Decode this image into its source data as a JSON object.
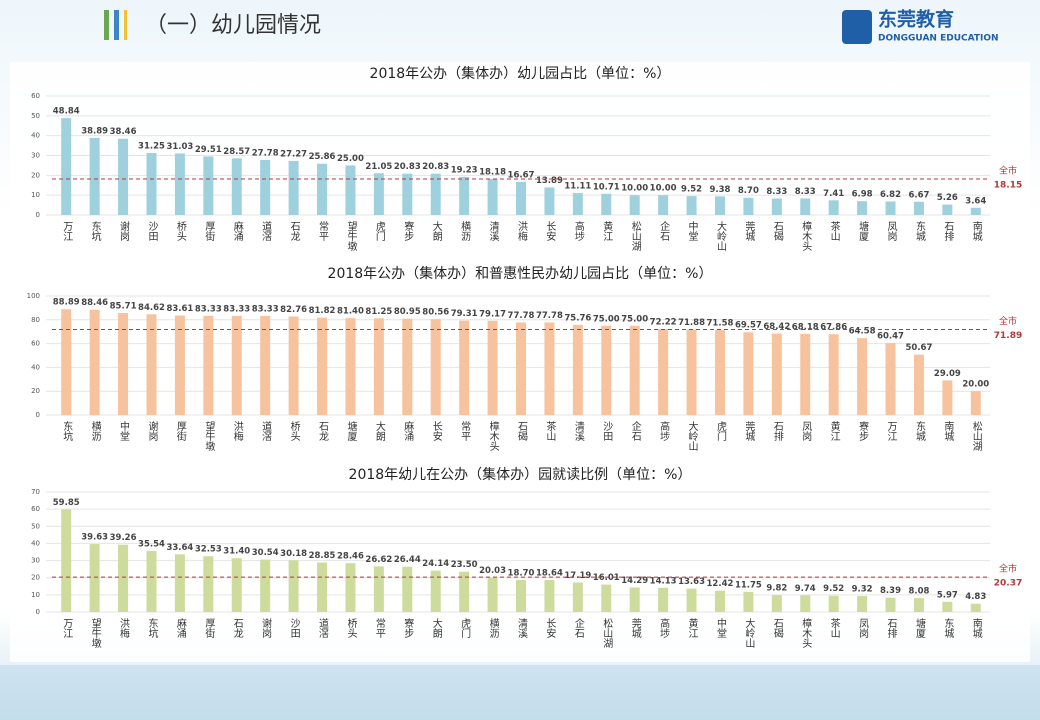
{
  "header": {
    "title": "（一）幼儿园情况",
    "logo": "东莞教育",
    "logo_sub": "DONGGUAN EDUCATION"
  },
  "chart_data": [
    {
      "type": "bar",
      "title": "2018年公办（集体办）幼儿园占比（单位：%）",
      "categories": [
        "万江",
        "东坑",
        "谢岗",
        "沙田",
        "桥头",
        "厚街",
        "麻涌",
        "道滘",
        "石龙",
        "常平",
        "望牛墩",
        "虎门",
        "寮步",
        "大朗",
        "横沥",
        "清溪",
        "洪梅",
        "长安",
        "高埗",
        "黄江",
        "松山湖",
        "企石",
        "中堂",
        "大岭山",
        "莞城",
        "石碣",
        "樟木头",
        "茶山",
        "塘厦",
        "凤岗",
        "东城",
        "石排",
        "南城"
      ],
      "values": [
        48.84,
        38.89,
        38.46,
        31.25,
        31.03,
        29.51,
        28.57,
        27.78,
        27.27,
        25.86,
        25.0,
        21.05,
        20.83,
        20.83,
        19.23,
        18.18,
        16.67,
        13.89,
        11.11,
        10.71,
        10.0,
        10.0,
        9.52,
        9.38,
        8.7,
        8.33,
        8.33,
        7.41,
        6.98,
        6.82,
        6.67,
        5.26,
        3.64
      ],
      "value_labels": [
        "48.84",
        "38.89",
        "38.46",
        "31.25",
        "31.03",
        "29.51",
        "28.57",
        "27.78",
        "27.27",
        "25.86",
        "25.00",
        "21.05",
        "20.83",
        "20.83",
        "19.23",
        "18.18",
        "16.67",
        "13.89",
        "11.11",
        "10.71",
        "10.00",
        "10.00",
        "9.52",
        "9.38",
        "8.70",
        "8.33",
        "8.33",
        "7.41",
        "6.98",
        "6.82",
        "6.67",
        "5.26",
        "3.64"
      ],
      "color": "#9fd0de",
      "ylim": [
        0,
        60
      ],
      "yticks": [
        0,
        10,
        20,
        30,
        40,
        50,
        60
      ],
      "grid": true,
      "reference": {
        "label": "全市",
        "value": 18.15,
        "color": "#b03a3a"
      }
    },
    {
      "type": "bar",
      "title": "2018年公办（集体办）和普惠性民办幼儿园占比（单位：%）",
      "categories": [
        "东坑",
        "横沥",
        "中堂",
        "谢岗",
        "厚街",
        "望牛墩",
        "洪梅",
        "道滘",
        "桥头",
        "石龙",
        "塘厦",
        "大朗",
        "麻涌",
        "长安",
        "常平",
        "樟木头",
        "石碣",
        "茶山",
        "清溪",
        "沙田",
        "企石",
        "高埗",
        "大岭山",
        "虎门",
        "莞城",
        "石排",
        "凤岗",
        "黄江",
        "寮步",
        "万江",
        "东城",
        "南城",
        "松山湖"
      ],
      "values": [
        88.89,
        88.46,
        85.71,
        84.62,
        83.61,
        83.33,
        83.33,
        83.33,
        82.76,
        81.82,
        81.4,
        81.25,
        80.95,
        80.56,
        79.31,
        79.17,
        77.78,
        77.78,
        75.76,
        75.0,
        75.0,
        72.22,
        71.88,
        71.58,
        69.57,
        68.42,
        68.18,
        67.86,
        64.58,
        60.47,
        50.67,
        29.09,
        20.0
      ],
      "value_labels": [
        "88.89",
        "88.46",
        "85.71",
        "84.62",
        "83.61",
        "83.33",
        "83.33",
        "83.33",
        "82.76",
        "81.82",
        "81.40",
        "81.25",
        "80.95",
        "80.56",
        "79.31",
        "79.17",
        "77.78",
        "77.78",
        "75.76",
        "75.00",
        "75.00",
        "72.22",
        "71.88",
        "71.58",
        "69.57",
        "68.42",
        "68.18",
        "67.86",
        "64.58",
        "60.47",
        "50.67",
        "29.09",
        "20.00"
      ],
      "color": "#f7c39e",
      "ylim": [
        0,
        100
      ],
      "yticks": [
        0,
        20,
        40,
        60,
        80,
        100
      ],
      "grid": true,
      "reference": {
        "label": "全市",
        "value": 71.89,
        "color": "#b03a3a"
      }
    },
    {
      "type": "bar",
      "title": "2018年幼儿在公办（集体办）园就读比例（单位：%）",
      "categories": [
        "万江",
        "望牛墩",
        "洪梅",
        "东坑",
        "麻涌",
        "厚街",
        "石龙",
        "谢岗",
        "沙田",
        "道滘",
        "桥头",
        "常平",
        "寮步",
        "大朗",
        "虎门",
        "横沥",
        "清溪",
        "长安",
        "企石",
        "松山湖",
        "莞城",
        "高埗",
        "黄江",
        "中堂",
        "大岭山",
        "石碣",
        "樟木头",
        "茶山",
        "凤岗",
        "石排",
        "塘厦",
        "东城",
        "南城"
      ],
      "values": [
        59.85,
        39.63,
        39.26,
        35.54,
        33.64,
        32.53,
        31.4,
        30.54,
        30.18,
        28.85,
        28.46,
        26.62,
        26.44,
        24.14,
        23.5,
        20.03,
        18.7,
        18.64,
        17.19,
        16.01,
        14.29,
        14.13,
        13.63,
        12.42,
        11.75,
        9.82,
        9.74,
        9.52,
        9.32,
        8.39,
        8.08,
        5.97,
        4.83
      ],
      "value_labels": [
        "59.85",
        "39.63",
        "39.26",
        "35.54",
        "33.64",
        "32.53",
        "31.40",
        "30.54",
        "30.18",
        "28.85",
        "28.46",
        "26.62",
        "26.44",
        "24.14",
        "23.50",
        "20.03",
        "18.70",
        "18.64",
        "17.19",
        "16.01",
        "14.29",
        "14.13",
        "13.63",
        "12.42",
        "11.75",
        "9.82",
        "9.74",
        "9.52",
        "9.32",
        "8.39",
        "8.08",
        "5.97",
        "4.83"
      ],
      "color": "#cddc9c",
      "ylim": [
        0,
        70
      ],
      "yticks": [
        0,
        10,
        20,
        30,
        40,
        50,
        60,
        70
      ],
      "grid": true,
      "reference": {
        "label": "全市",
        "value": 20.37,
        "color": "#b03a3a"
      }
    }
  ]
}
